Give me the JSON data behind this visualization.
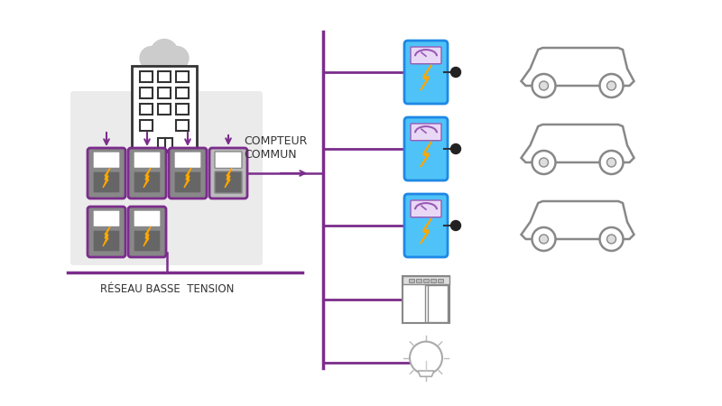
{
  "bg_color": "#ffffff",
  "purple": "#7B2D8B",
  "gray_dark": "#808080",
  "gray_light": "#d0d0d0",
  "gray_bg": "#e8e8e8",
  "blue_charger": "#4FC3F7",
  "yellow_bolt": "#FFD700",
  "orange_bolt": "#FFA500",
  "text_color": "#333333",
  "label_rbt": "RÉSEAU BASSE  TENSION",
  "label_cc": "COMPTEUR\nCOMMUN",
  "fig_width": 8.0,
  "fig_height": 4.5
}
